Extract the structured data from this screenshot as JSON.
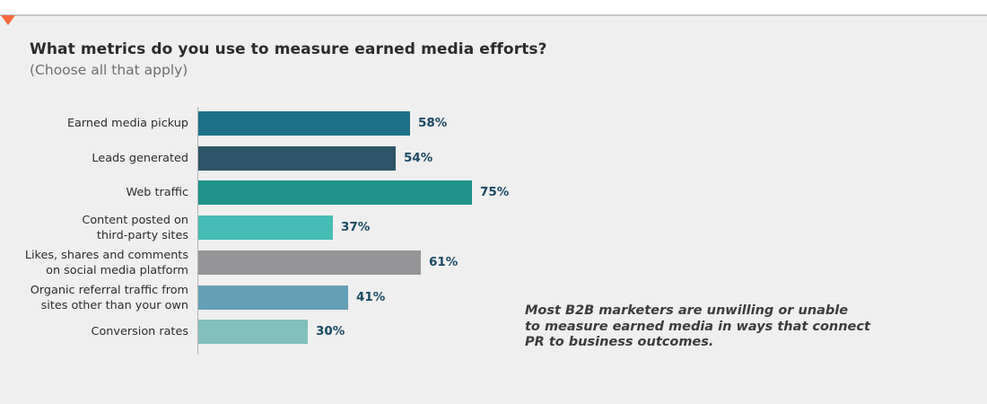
{
  "header": {
    "title": "What metrics do you use to measure earned media efforts?",
    "subtitle": "(Choose all that apply)"
  },
  "annotation": {
    "lines": [
      "Most B2B marketers are unwilling or unable",
      "to measure earned media in ways that connect",
      "PR to business outcomes."
    ],
    "full_text": "Most B2B marketers are unwilling or unable to measure earned media in ways that connect PR to business outcomes."
  },
  "decorations": {
    "marker_color": "#f4693c",
    "panel_background": "#efefef",
    "top_rule_color": "#c6c6c6",
    "axis_line_color": "#b3b3b3",
    "value_label_color": "#1a4a63"
  },
  "chart_data": {
    "type": "bar",
    "orientation": "horizontal",
    "title": "What metrics do you use to measure earned media efforts?",
    "subtitle": "(Choose all that apply)",
    "categories": [
      "Earned media pickup",
      "Leads generated",
      "Web traffic",
      "Content posted on third-party sites",
      "Likes, shares and comments on social media platform",
      "Organic referral traffic from sites other than your own",
      "Conversion rates"
    ],
    "category_label_lines": [
      [
        "Earned media pickup"
      ],
      [
        "Leads generated"
      ],
      [
        "Web traffic"
      ],
      [
        "Content posted on",
        "third-party sites"
      ],
      [
        "Likes, shares and comments",
        "on social media platform"
      ],
      [
        "Organic referral traffic from",
        "sites other than your own"
      ],
      [
        "Conversion rates"
      ]
    ],
    "values": [
      58,
      54,
      75,
      37,
      61,
      41,
      30
    ],
    "value_labels": [
      "58%",
      "54%",
      "75%",
      "37%",
      "61%",
      "41%",
      "30%"
    ],
    "bar_colors": [
      "#1e7089",
      "#2e5468",
      "#1f928a",
      "#45bdb4",
      "#959597",
      "#64a0b4",
      "#82c0ba"
    ],
    "xlim": [
      0,
      100
    ],
    "gridlines": false,
    "legend": "none",
    "value_label_position": "right of bar end"
  }
}
